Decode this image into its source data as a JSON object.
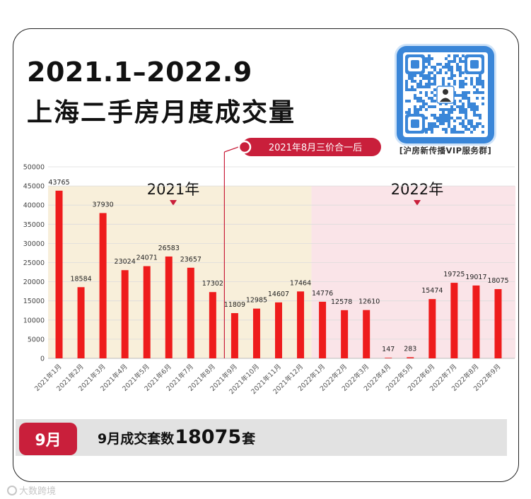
{
  "header": {
    "title_line1": "2021.1–2022.9",
    "title_line2": "上海二手房月度成交量"
  },
  "qr": {
    "caption": "[沪房新传播VIP服务群]",
    "icon": "qr-code"
  },
  "colors": {
    "bar": "#ee1c1c",
    "accent": "#c91f3b",
    "band_2021": "#f8efda",
    "band_2022": "#fae4e8",
    "qr": "#3a86d8"
  },
  "chart_data": {
    "type": "bar",
    "categories": [
      "2021年1月",
      "2021年2月",
      "2021年3月",
      "2021年4月",
      "2021年5月",
      "2021年6月",
      "2021年7月",
      "2021年8月",
      "2021年9月",
      "2021年10月",
      "2021年11月",
      "2021年12月",
      "2022年1月",
      "2022年2月",
      "2022年3月",
      "2022年4月",
      "2022年5月",
      "2022年6月",
      "2022年7月",
      "2022年8月",
      "2022年9月"
    ],
    "values": [
      43765,
      18584,
      37930,
      23024,
      24071,
      26583,
      23657,
      17302,
      11809,
      12985,
      14607,
      17464,
      14776,
      12578,
      12610,
      147,
      283,
      15474,
      19725,
      19017,
      18075
    ],
    "value_labels": [
      "43765",
      "18584",
      "37930",
      "23024",
      "24071",
      "26583",
      "23657",
      "17302",
      "11809",
      "12985",
      "14607",
      "17464",
      "14776",
      "12578",
      "12610",
      "147",
      "283",
      "15474",
      "19725",
      "19017",
      "18075"
    ],
    "yticks": [
      "0",
      "5000",
      "10000",
      "15000",
      "20000",
      "25000",
      "30000",
      "35000",
      "40000",
      "45000",
      "50000"
    ],
    "ylim": [
      0,
      50000
    ],
    "grid": true,
    "year_bands": [
      "2021年",
      "2022年"
    ],
    "annotation": "2021年8月三价合一后",
    "title": "",
    "xlabel": "",
    "ylabel": ""
  },
  "summary": {
    "badge": "9月",
    "text_prefix": "9月成交套数",
    "number": "18075",
    "text_suffix": "套"
  },
  "watermark": "大数跨境"
}
